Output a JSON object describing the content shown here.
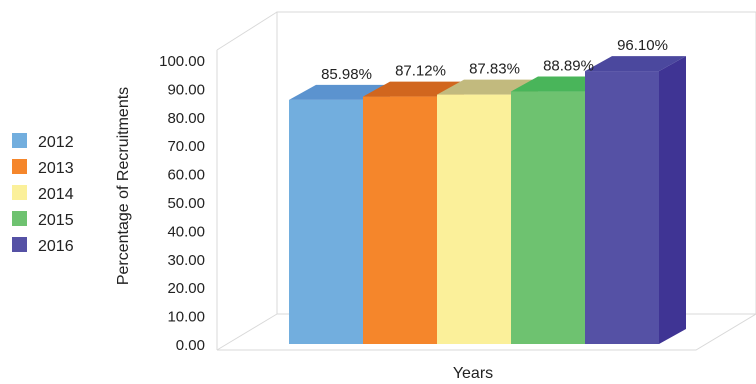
{
  "chart_data": {
    "type": "bar",
    "categories": [
      "2012",
      "2013",
      "2014",
      "2015",
      "2016"
    ],
    "values": [
      85.98,
      87.12,
      87.83,
      88.89,
      96.1
    ],
    "data_labels": [
      "85.98%",
      "87.12%",
      "87.83%",
      "88.89%",
      "96.10%"
    ],
    "title": "",
    "xlabel": "Years",
    "ylabel": "Percentage of Recruitments",
    "ylim": [
      0,
      100
    ],
    "yticks": [
      "0.00",
      "10.00",
      "20.00",
      "30.00",
      "40.00",
      "50.00",
      "60.00",
      "70.00",
      "80.00",
      "90.00",
      "100.00"
    ],
    "grid": false,
    "legend_position": "left",
    "style": "3d",
    "colors": {
      "2012": {
        "front": "#72AEDE",
        "top": "#5B93CF",
        "side": "#4A7CB5"
      },
      "2013": {
        "front": "#F5862B",
        "top": "#D1661E",
        "side": "#B8561A"
      },
      "2014": {
        "front": "#FBF09A",
        "top": "#C2BA7E",
        "side": "#A9A36D"
      },
      "2015": {
        "front": "#6EC270",
        "top": "#49B55A",
        "side": "#3E9A4C"
      },
      "2016": {
        "front": "#5551A5",
        "top": "#4B489E",
        "side": "#3F3494"
      }
    }
  }
}
